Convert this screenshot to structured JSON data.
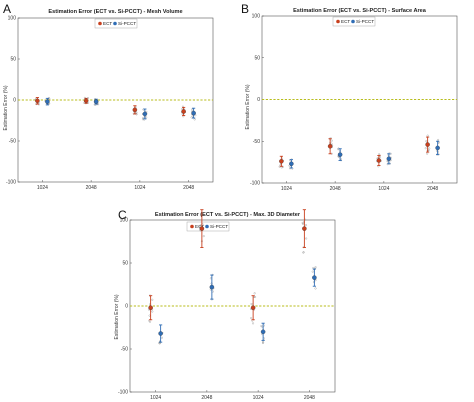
{
  "figure": {
    "panel_letters": [
      "A",
      "B",
      "C"
    ]
  },
  "colors": {
    "ect": "#c8401e",
    "si_pcct": "#2f6db5",
    "zero_line": "#b8bd1d",
    "scatter": "#9a9a9a"
  },
  "chart_data": [
    {
      "type": "scatter",
      "title": "Estimation Error (ECT vs. Si-PCCT) - Mesh Volume",
      "xlabel": "",
      "ylabel": "Estimation Error (%)",
      "ylim": [
        -100,
        100
      ],
      "yticks": [
        -100,
        -50,
        0,
        50,
        100
      ],
      "zero_line": true,
      "legend": {
        "placement": "top-center",
        "entries": [
          "ECT",
          "Si-PCCT"
        ]
      },
      "categories": [
        "1024",
        "2048",
        "1024",
        "2048"
      ],
      "series": [
        {
          "name": "ECT",
          "values": [
            -1,
            -1,
            -12,
            -14
          ],
          "errors": [
            4,
            3,
            5,
            5
          ]
        },
        {
          "name": "Si-PCCT",
          "values": [
            -2,
            -2,
            -17,
            -16
          ],
          "errors": [
            4,
            3,
            6,
            6
          ]
        }
      ]
    },
    {
      "type": "scatter",
      "title": "Estimation Error (ECT vs. Si-PCCT) - Surface Area",
      "xlabel": "",
      "ylabel": "Estimation Error (%)",
      "ylim": [
        -100,
        100
      ],
      "yticks": [
        -100,
        -50,
        0,
        50,
        100
      ],
      "zero_line": true,
      "legend": {
        "placement": "top-center",
        "entries": [
          "ECT",
          "Si-PCCT"
        ]
      },
      "categories": [
        "1024",
        "2048",
        "1024",
        "2048"
      ],
      "series": [
        {
          "name": "ECT",
          "values": [
            -74,
            -56,
            -73,
            -54
          ],
          "errors": [
            6,
            9,
            6,
            9
          ]
        },
        {
          "name": "Si-PCCT",
          "values": [
            -77,
            -66,
            -71,
            -58
          ],
          "errors": [
            5,
            7,
            6,
            8
          ]
        }
      ]
    },
    {
      "type": "scatter",
      "title": "Estimation Error (ECT vs. Si-PCCT) - Max. 3D Diameter",
      "xlabel": "",
      "ylabel": "Estimation Error (%)",
      "ylim": [
        -100,
        100
      ],
      "yticks": [
        -100,
        -50,
        0,
        50,
        100
      ],
      "zero_line": true,
      "legend": {
        "placement": "top-center",
        "entries": [
          "ECT",
          "Si-PCCT"
        ]
      },
      "categories": [
        "1024",
        "2048",
        "1024",
        "2048"
      ],
      "series": [
        {
          "name": "ECT",
          "values": [
            -2,
            90,
            -2,
            90
          ],
          "errors": [
            14,
            22,
            14,
            22
          ]
        },
        {
          "name": "Si-PCCT",
          "values": [
            -32,
            22,
            -30,
            33
          ],
          "errors": [
            10,
            14,
            10,
            10
          ]
        }
      ]
    }
  ]
}
